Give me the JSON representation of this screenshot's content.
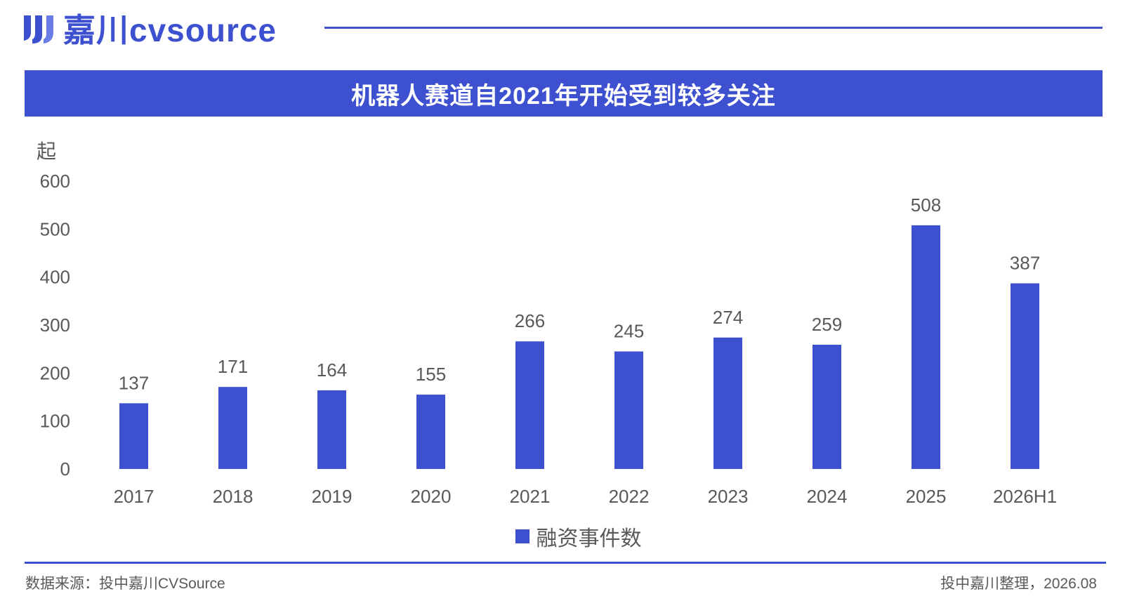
{
  "header": {
    "logo_text": "嘉川cvsource",
    "brand_color": "#3d51d0",
    "title": "机器人赛道自2021年开始受到较多关注"
  },
  "chart_data": {
    "type": "bar",
    "title": "机器人赛道自2021年开始受到较多关注",
    "ylabel": "起",
    "xlabel": "",
    "categories": [
      "2017",
      "2018",
      "2019",
      "2020",
      "2021",
      "2022",
      "2023",
      "2024",
      "2025",
      "2026H1"
    ],
    "series": [
      {
        "name": "融资事件数",
        "values": [
          137,
          171,
          164,
          155,
          266,
          245,
          274,
          259,
          508,
          387
        ],
        "color": "#3d51d0"
      }
    ],
    "ylim": [
      0,
      600
    ],
    "yticks": [
      "0",
      "100",
      "200",
      "300",
      "400",
      "500",
      "600"
    ],
    "grid": false,
    "legend_position": "bottom"
  },
  "footer": {
    "source": "数据来源：投中嘉川CVSource",
    "note": "投中嘉川整理，2026.08"
  }
}
